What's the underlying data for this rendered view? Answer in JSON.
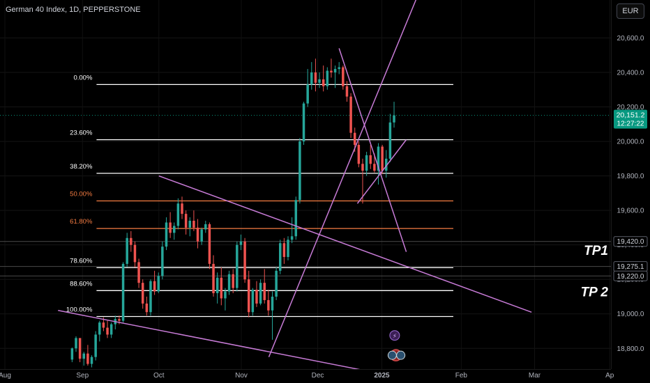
{
  "header": {
    "title": "German 40 Index, 1D, PEPPERSTONE",
    "currency": "EUR"
  },
  "colors": {
    "background": "#000000",
    "up": "#26a69a",
    "down": "#ef5350",
    "fib_white": "#ffffff",
    "fib_orange": "#f57c42",
    "trendline": "#c77bd6",
    "price_badge": "#089981"
  },
  "chart_data": {
    "type": "candlestick",
    "instrument": "German 40 Index",
    "timeframe": "1D",
    "source": "PEPPERSTONE",
    "ylim": [
      18680,
      20820
    ],
    "y_ticks": [
      "18,800.0",
      "19,000.0",
      "19,200.0",
      "19,400.0",
      "19,600.0",
      "19,800.0",
      "20,000.0",
      "20,200.0",
      "20,400.0",
      "20,600.0"
    ],
    "x_ticks": [
      "Aug",
      "Sep",
      "Oct",
      "Nov",
      "Dec",
      "2025",
      "Feb",
      "Mar",
      "Ap"
    ],
    "current_price": {
      "value": "20,151.2",
      "countdown": "12:27:22"
    },
    "price_labels": [
      {
        "value": "19,420.0",
        "price": 19420
      },
      {
        "value": "19,275.1",
        "price": 19275
      },
      {
        "value": "19,220.0",
        "price": 19220
      }
    ],
    "fib_levels": [
      {
        "label": "0.00%",
        "price": 20330,
        "color": "white"
      },
      {
        "label": "23.60%",
        "price": 20010,
        "color": "white"
      },
      {
        "label": "38.20%",
        "price": 19815,
        "color": "white"
      },
      {
        "label": "50.00%",
        "price": 19655,
        "color": "orange"
      },
      {
        "label": "61.80%",
        "price": 19495,
        "color": "orange"
      },
      {
        "label": "78.60%",
        "price": 19268,
        "color": "white"
      },
      {
        "label": "88.60%",
        "price": 19135,
        "color": "white"
      },
      {
        "label": "100.00%",
        "price": 18985,
        "color": "white"
      }
    ],
    "annotations": [
      {
        "text": "TP1",
        "price": 19375
      },
      {
        "text": "TP 2",
        "price": 19135
      }
    ],
    "candles": [
      [
        18735,
        18805,
        18720,
        18800
      ],
      [
        18800,
        18870,
        18780,
        18860
      ],
      [
        18860,
        18860,
        18720,
        18740
      ],
      [
        18740,
        18780,
        18700,
        18770
      ],
      [
        18770,
        18820,
        18700,
        18710
      ],
      [
        18710,
        18760,
        18690,
        18750
      ],
      [
        18750,
        18900,
        18730,
        18880
      ],
      [
        18880,
        18960,
        18840,
        18950
      ],
      [
        18950,
        18980,
        18900,
        18920
      ],
      [
        18920,
        18960,
        18860,
        18880
      ],
      [
        18880,
        18950,
        18860,
        18940
      ],
      [
        18940,
        18990,
        18910,
        18970
      ],
      [
        18970,
        18990,
        18940,
        18960
      ],
      [
        18960,
        19300,
        18950,
        19290
      ],
      [
        19290,
        19470,
        19270,
        19440
      ],
      [
        19440,
        19480,
        19360,
        19400
      ],
      [
        19400,
        19420,
        19270,
        19300
      ],
      [
        19300,
        19320,
        19150,
        19180
      ],
      [
        19180,
        19200,
        19030,
        19060
      ],
      [
        19060,
        19100,
        18990,
        19010
      ],
      [
        19010,
        19200,
        18990,
        19190
      ],
      [
        19190,
        19250,
        19110,
        19130
      ],
      [
        19130,
        19240,
        19120,
        19220
      ],
      [
        19220,
        19420,
        19200,
        19390
      ],
      [
        19390,
        19560,
        19370,
        19530
      ],
      [
        19530,
        19590,
        19440,
        19470
      ],
      [
        19470,
        19530,
        19430,
        19510
      ],
      [
        19510,
        19670,
        19490,
        19640
      ],
      [
        19640,
        19680,
        19550,
        19580
      ],
      [
        19580,
        19600,
        19460,
        19500
      ],
      [
        19500,
        19560,
        19450,
        19540
      ],
      [
        19540,
        19600,
        19480,
        19500
      ],
      [
        19500,
        19550,
        19380,
        19420
      ],
      [
        19420,
        19500,
        19400,
        19490
      ],
      [
        19490,
        19540,
        19470,
        19520
      ],
      [
        19520,
        19530,
        19260,
        19290
      ],
      [
        19290,
        19340,
        19100,
        19120
      ],
      [
        19120,
        19240,
        19060,
        19210
      ],
      [
        19210,
        19270,
        19050,
        19090
      ],
      [
        19090,
        19150,
        19020,
        19130
      ],
      [
        19130,
        19250,
        19110,
        19230
      ],
      [
        19230,
        19260,
        19120,
        19150
      ],
      [
        19150,
        19420,
        19130,
        19400
      ],
      [
        19400,
        19460,
        19370,
        19420
      ],
      [
        19420,
        19440,
        19180,
        19200
      ],
      [
        19200,
        19250,
        18980,
        19010
      ],
      [
        19010,
        19150,
        18990,
        19140
      ],
      [
        19140,
        19190,
        19040,
        19060
      ],
      [
        19060,
        19200,
        19050,
        19180
      ],
      [
        19180,
        19260,
        19060,
        19080
      ],
      [
        19080,
        19140,
        18990,
        19020
      ],
      [
        19020,
        19130,
        18850,
        19100
      ],
      [
        19100,
        19270,
        19080,
        19250
      ],
      [
        19250,
        19430,
        19230,
        19410
      ],
      [
        19410,
        19440,
        19290,
        19330
      ],
      [
        19330,
        19450,
        19310,
        19430
      ],
      [
        19430,
        19560,
        19410,
        19450
      ],
      [
        19450,
        19680,
        19430,
        19660
      ],
      [
        19660,
        20020,
        19640,
        20000
      ],
      [
        20000,
        20230,
        19980,
        20220
      ],
      [
        20220,
        20420,
        20200,
        20330
      ],
      [
        20330,
        20460,
        20300,
        20400
      ],
      [
        20400,
        20480,
        20290,
        20340
      ],
      [
        20340,
        20400,
        20310,
        20360
      ],
      [
        20360,
        20440,
        20290,
        20320
      ],
      [
        20320,
        20430,
        20300,
        20410
      ],
      [
        20410,
        20480,
        20370,
        20400
      ],
      [
        20400,
        20440,
        20310,
        20420
      ],
      [
        20420,
        20460,
        20390,
        20430
      ],
      [
        20430,
        20440,
        20300,
        20320
      ],
      [
        20320,
        20350,
        20230,
        20260
      ],
      [
        20260,
        20280,
        20020,
        20050
      ],
      [
        20050,
        20080,
        19940,
        19980
      ],
      [
        19980,
        20000,
        19850,
        19870
      ],
      [
        19870,
        19900,
        19640,
        19830
      ],
      [
        19830,
        19940,
        19800,
        19920
      ],
      [
        19920,
        19980,
        19840,
        19870
      ],
      [
        19870,
        19930,
        19820,
        19830
      ],
      [
        19830,
        19990,
        19750,
        19970
      ],
      [
        19970,
        19980,
        19810,
        19830
      ],
      [
        19830,
        19950,
        19790,
        19900
      ],
      [
        19900,
        20160,
        19880,
        20110
      ],
      [
        20110,
        20230,
        20080,
        20151
      ]
    ],
    "trendlines": [
      {
        "from": [
          0.095,
          19020
        ],
        "to": [
          0.7,
          18600
        ]
      },
      {
        "from": [
          0.26,
          19800
        ],
        "to": [
          0.87,
          19010
        ]
      },
      {
        "from": [
          0.44,
          18750
        ],
        "to": [
          0.69,
          20900
        ]
      },
      {
        "from": [
          0.555,
          20540
        ],
        "to": [
          0.665,
          19360
        ]
      },
      {
        "from": [
          0.585,
          19640
        ],
        "to": [
          0.665,
          20010
        ]
      }
    ]
  }
}
